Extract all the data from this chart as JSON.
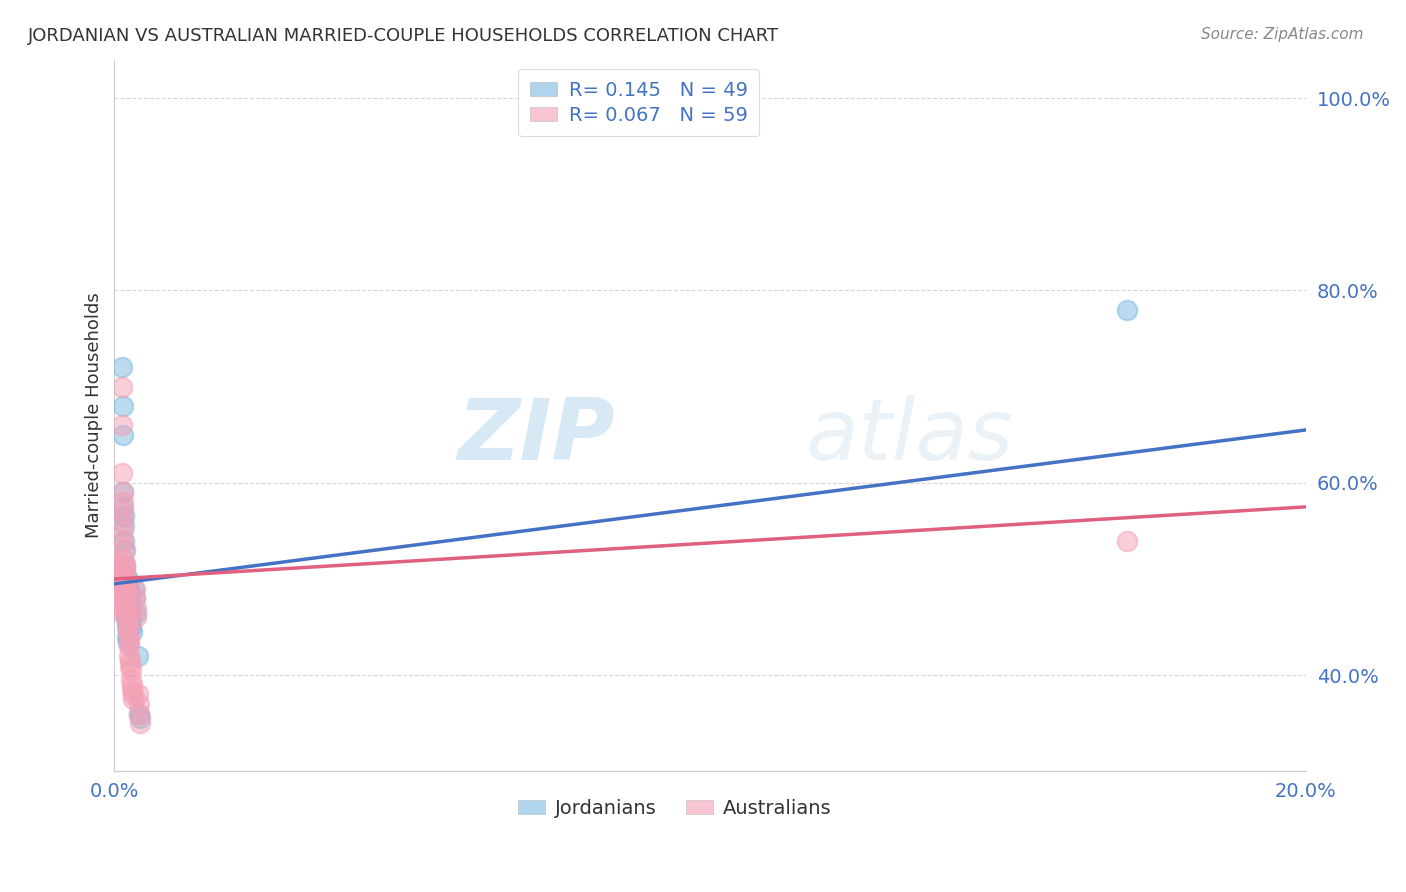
{
  "title": "JORDANIAN VS AUSTRALIAN MARRIED-COUPLE HOUSEHOLDS CORRELATION CHART",
  "source": "Source: ZipAtlas.com",
  "ylabel": "Married-couple Households",
  "xmin": 0.0,
  "xmax": 0.2,
  "ymin": 0.3,
  "ymax": 1.04,
  "yticks": [
    0.4,
    0.6,
    0.8,
    1.0
  ],
  "ytick_labels": [
    "40.0%",
    "60.0%",
    "80.0%",
    "100.0%"
  ],
  "xtick_labels": [
    "0.0%",
    "20.0%"
  ],
  "r1": 0.145,
  "n1": 49,
  "r2": 0.067,
  "n2": 59,
  "blue_color": "#7ab8e0",
  "pink_color": "#f4a0b5",
  "line_blue": "#4472c4",
  "line_pink": "#e06080",
  "blue_scatter": [
    [
      0.0005,
      0.51
    ],
    [
      0.0008,
      0.5
    ],
    [
      0.001,
      0.505
    ],
    [
      0.0012,
      0.72
    ],
    [
      0.0013,
      0.5
    ],
    [
      0.0013,
      0.49
    ],
    [
      0.0015,
      0.68
    ],
    [
      0.0015,
      0.65
    ],
    [
      0.0015,
      0.59
    ],
    [
      0.0015,
      0.575
    ],
    [
      0.0016,
      0.565
    ],
    [
      0.0016,
      0.555
    ],
    [
      0.0016,
      0.54
    ],
    [
      0.0017,
      0.53
    ],
    [
      0.0017,
      0.515
    ],
    [
      0.0017,
      0.505
    ],
    [
      0.0018,
      0.5
    ],
    [
      0.0018,
      0.495
    ],
    [
      0.0019,
      0.49
    ],
    [
      0.0019,
      0.48
    ],
    [
      0.002,
      0.475
    ],
    [
      0.002,
      0.47
    ],
    [
      0.002,
      0.465
    ],
    [
      0.002,
      0.46
    ],
    [
      0.0021,
      0.455
    ],
    [
      0.0021,
      0.45
    ],
    [
      0.0021,
      0.44
    ],
    [
      0.0022,
      0.435
    ],
    [
      0.0022,
      0.5
    ],
    [
      0.0022,
      0.49
    ],
    [
      0.0023,
      0.485
    ],
    [
      0.0023,
      0.48
    ],
    [
      0.0024,
      0.49
    ],
    [
      0.0024,
      0.48
    ],
    [
      0.0025,
      0.485
    ],
    [
      0.0025,
      0.475
    ],
    [
      0.0026,
      0.47
    ],
    [
      0.0026,
      0.465
    ],
    [
      0.0027,
      0.46
    ],
    [
      0.0027,
      0.455
    ],
    [
      0.0028,
      0.45
    ],
    [
      0.0029,
      0.445
    ],
    [
      0.0033,
      0.49
    ],
    [
      0.0035,
      0.48
    ],
    [
      0.0036,
      0.465
    ],
    [
      0.004,
      0.42
    ],
    [
      0.0042,
      0.36
    ],
    [
      0.0043,
      0.355
    ],
    [
      0.17,
      0.78
    ]
  ],
  "pink_scatter": [
    [
      0.0005,
      0.52
    ],
    [
      0.0006,
      0.515
    ],
    [
      0.0007,
      0.51
    ],
    [
      0.0008,
      0.505
    ],
    [
      0.0009,
      0.5
    ],
    [
      0.0009,
      0.495
    ],
    [
      0.001,
      0.49
    ],
    [
      0.001,
      0.485
    ],
    [
      0.0011,
      0.48
    ],
    [
      0.0011,
      0.475
    ],
    [
      0.0012,
      0.47
    ],
    [
      0.0012,
      0.465
    ],
    [
      0.0013,
      0.7
    ],
    [
      0.0013,
      0.66
    ],
    [
      0.0013,
      0.61
    ],
    [
      0.0014,
      0.59
    ],
    [
      0.0014,
      0.58
    ],
    [
      0.0014,
      0.57
    ],
    [
      0.0015,
      0.56
    ],
    [
      0.0015,
      0.55
    ],
    [
      0.0015,
      0.54
    ],
    [
      0.0016,
      0.53
    ],
    [
      0.0016,
      0.52
    ],
    [
      0.0017,
      0.515
    ],
    [
      0.0017,
      0.51
    ],
    [
      0.0018,
      0.505
    ],
    [
      0.0018,
      0.5
    ],
    [
      0.0019,
      0.495
    ],
    [
      0.0019,
      0.49
    ],
    [
      0.002,
      0.485
    ],
    [
      0.002,
      0.48
    ],
    [
      0.002,
      0.475
    ],
    [
      0.0021,
      0.47
    ],
    [
      0.0021,
      0.465
    ],
    [
      0.0022,
      0.46
    ],
    [
      0.0022,
      0.455
    ],
    [
      0.0023,
      0.45
    ],
    [
      0.0023,
      0.445
    ],
    [
      0.0024,
      0.44
    ],
    [
      0.0024,
      0.435
    ],
    [
      0.0025,
      0.43
    ],
    [
      0.0025,
      0.42
    ],
    [
      0.0026,
      0.415
    ],
    [
      0.0027,
      0.41
    ],
    [
      0.0028,
      0.405
    ],
    [
      0.0028,
      0.395
    ],
    [
      0.0029,
      0.39
    ],
    [
      0.003,
      0.385
    ],
    [
      0.0031,
      0.38
    ],
    [
      0.0031,
      0.375
    ],
    [
      0.0035,
      0.49
    ],
    [
      0.0035,
      0.48
    ],
    [
      0.0036,
      0.47
    ],
    [
      0.0036,
      0.46
    ],
    [
      0.004,
      0.38
    ],
    [
      0.0041,
      0.37
    ],
    [
      0.0042,
      0.36
    ],
    [
      0.0043,
      0.35
    ],
    [
      0.17,
      0.54
    ]
  ],
  "watermark_zip": "ZIP",
  "watermark_atlas": "atlas",
  "background_color": "#ffffff",
  "grid_color": "#cccccc",
  "title_color": "#333333",
  "axis_tick_color": "#4472c4",
  "legend_val_color": "#4472c4"
}
